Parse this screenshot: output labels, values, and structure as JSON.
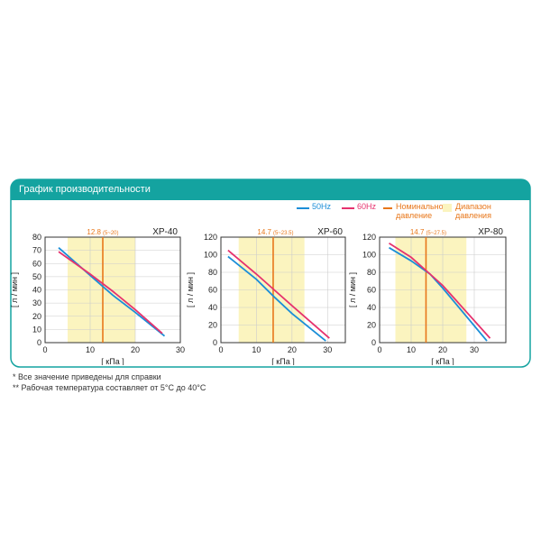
{
  "header": {
    "title": "График производительности"
  },
  "colors": {
    "teal": "#14a3a0",
    "hz50": "#1b8ed8",
    "hz60": "#e6326e",
    "nominal": "#e8771a",
    "range": "#fbf4bf"
  },
  "legend": {
    "hz50": "50Hz",
    "hz60": "60Hz",
    "nominal_line1": "Номинальное",
    "nominal_line2": "давление",
    "range_line1": "Диапазон",
    "range_line2": "давления"
  },
  "notes": [
    "*  Все значение приведены для справки",
    "** Рабочая температура составляет от 5°C до 40°C"
  ],
  "chart_data": [
    {
      "type": "line",
      "model": "XP-40",
      "nominal_label": "12.8",
      "range_label": "(5~20)",
      "nominal": 12.8,
      "range": [
        5,
        20
      ],
      "xlabel": "[ кПа ]",
      "ylabel": "[ л / мин ]",
      "xlim": [
        0,
        30
      ],
      "ylim": [
        0,
        80
      ],
      "xticks": [
        0,
        10,
        20,
        30
      ],
      "yticks": [
        0,
        10,
        20,
        30,
        40,
        50,
        60,
        70,
        80
      ],
      "series": [
        {
          "name": "50Hz",
          "x": [
            3,
            10,
            15,
            20,
            26.5
          ],
          "y": [
            72,
            51,
            36,
            23,
            5
          ]
        },
        {
          "name": "60Hz",
          "x": [
            3,
            10,
            15,
            20,
            26
          ],
          "y": [
            69,
            52,
            39,
            25,
            7
          ]
        }
      ]
    },
    {
      "type": "line",
      "model": "XP-60",
      "nominal_label": "14.7",
      "range_label": "(5~23.5)",
      "nominal": 14.7,
      "range": [
        5,
        23.5
      ],
      "xlabel": "[ кПа ]",
      "ylabel": "[ л / мин ]",
      "xlim": [
        0,
        35
      ],
      "ylim": [
        0,
        120
      ],
      "xticks": [
        0,
        10,
        20,
        30
      ],
      "yticks": [
        0,
        20,
        40,
        60,
        80,
        100,
        120
      ],
      "series": [
        {
          "name": "50Hz",
          "x": [
            2,
            10,
            15,
            20,
            29.5
          ],
          "y": [
            98,
            72,
            52,
            33,
            2
          ]
        },
        {
          "name": "60Hz",
          "x": [
            2,
            10,
            15,
            20,
            30.5
          ],
          "y": [
            105,
            78,
            60,
            42,
            5
          ]
        }
      ]
    },
    {
      "type": "line",
      "model": "XP-80",
      "nominal_label": "14.7",
      "range_label": "(5~27.5)",
      "nominal": 14.7,
      "range": [
        5,
        27.5
      ],
      "xlabel": "[ кПа ]",
      "ylabel": "[ л / мин ]",
      "xlim": [
        0,
        40
      ],
      "ylim": [
        0,
        120
      ],
      "xticks": [
        0,
        10,
        20,
        30
      ],
      "yticks": [
        0,
        20,
        40,
        60,
        80,
        100,
        120
      ],
      "series": [
        {
          "name": "50Hz",
          "x": [
            3,
            10,
            16,
            20,
            34
          ],
          "y": [
            108,
            93,
            78,
            62,
            2
          ]
        },
        {
          "name": "60Hz",
          "x": [
            3,
            10,
            16,
            20,
            35
          ],
          "y": [
            113,
            97,
            78,
            65,
            5
          ]
        }
      ]
    }
  ]
}
